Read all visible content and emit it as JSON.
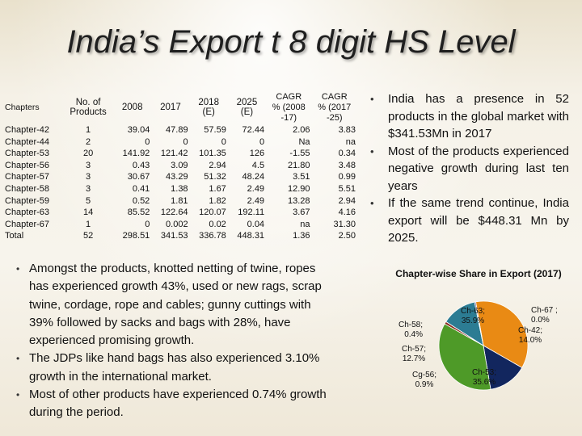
{
  "title": "India’s Export t 8 digit HS Level",
  "table": {
    "headers": [
      {
        "label": "Chapters"
      },
      {
        "lines": [
          "No. of",
          "Products"
        ]
      },
      {
        "label": "2008"
      },
      {
        "label": "2017"
      },
      {
        "lines": [
          "2018",
          "(E)"
        ]
      },
      {
        "lines": [
          "2025",
          "(E)"
        ]
      },
      {
        "lines": [
          "CAGR",
          "% (2008",
          "-17)"
        ]
      },
      {
        "lines": [
          "CAGR",
          "% (2017",
          "-25)"
        ]
      }
    ],
    "rows": [
      [
        "Chapter-42",
        "1",
        "39.04",
        "47.89",
        "57.59",
        "72.44",
        "2.06",
        "3.83"
      ],
      [
        "Chapter-44",
        "2",
        "0",
        "0",
        "0",
        "0",
        "Na",
        "na"
      ],
      [
        "Chapter-53",
        "20",
        "141.92",
        "121.42",
        "101.35",
        "126",
        "-1.55",
        "0.34"
      ],
      [
        "Chapter-56",
        "3",
        "0.43",
        "3.09",
        "2.94",
        "4.5",
        "21.80",
        "3.48"
      ],
      [
        "Chapter-57",
        "3",
        "30.67",
        "43.29",
        "51.32",
        "48.24",
        "3.51",
        "0.99"
      ],
      [
        "Chapter-58",
        "3",
        "0.41",
        "1.38",
        "1.67",
        "2.49",
        "12.90",
        "5.51"
      ],
      [
        "Chapter-59",
        "5",
        "0.52",
        "1.81",
        "1.82",
        "2.49",
        "13.28",
        "2.94"
      ],
      [
        "Chapter-63",
        "14",
        "85.52",
        "122.64",
        "120.07",
        "192.11",
        "3.67",
        "4.16"
      ],
      [
        "Chapter-67",
        "1",
        "0",
        "0.002",
        "0.02",
        "0.04",
        "na",
        "31.30"
      ],
      [
        "Total",
        "52",
        "298.51",
        "341.53",
        "336.78",
        "448.31",
        "1.36",
        "2.50"
      ]
    ]
  },
  "right_bullets": [
    "India has a presence in 52 products in the global market with $341.53Mn in 2017",
    "Most of the products experienced negative growth during last ten years",
    "If the same trend continue, India export will be $448.31 Mn by 2025."
  ],
  "bottom_bullets": [
    "Amongst the products, knotted netting of twine, ropes has experienced growth 43%, used or new rags, scrap twine, cordage, rope and cables; gunny cuttings with 39%  followed by sacks and bags with 28%, have experienced promising growth.",
    "The JDPs like hand bags has also experienced 3.10% growth in the international market.",
    "Most of  other products have experienced 0.74% growth during the period."
  ],
  "chart_data": {
    "type": "pie",
    "title": "Chapter-wise Share in Export (2017)",
    "slices": [
      {
        "label_lines": [
          "Ch-42;",
          "14.0%"
        ],
        "value": 14.0,
        "color": "#12265e"
      },
      {
        "label_lines": [
          "Ch-53;",
          "35.6%"
        ],
        "value": 35.6,
        "color": "#4e9a28"
      },
      {
        "label_lines": [
          "Cg-56;",
          "0.9%"
        ],
        "value": 0.9,
        "color": "#8a2a1f"
      },
      {
        "label_lines": [
          "Ch-57;",
          "12.7%"
        ],
        "value": 12.7,
        "color": "#2c7c93"
      },
      {
        "label_lines": [
          "Ch-58;",
          "0.4%"
        ],
        "value": 0.4,
        "color": "#5b3a7a"
      },
      {
        "label_lines": [
          "Ch-63;",
          "35.9%"
        ],
        "value": 35.9,
        "color": "#e98a14"
      },
      {
        "label_lines": [
          "Ch-67 ;",
          "0.0%"
        ],
        "value": 0.0,
        "color": "#1f3f7a"
      }
    ]
  }
}
